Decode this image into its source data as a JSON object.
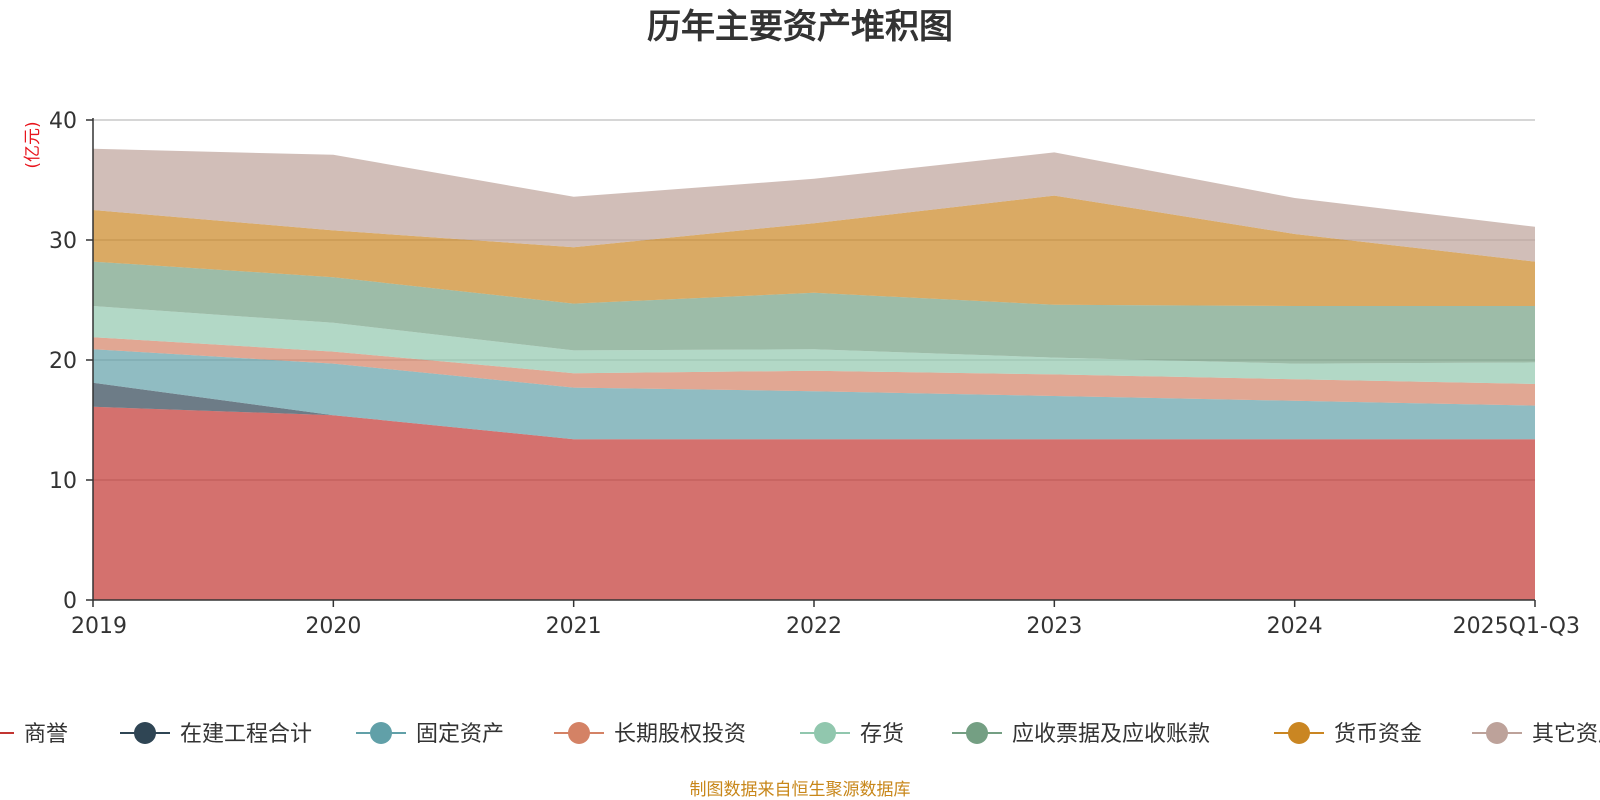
{
  "chart_data": {
    "type": "area",
    "stacked": true,
    "title": "历年主要资产堆积图",
    "ylabel": "(亿元)",
    "xlabel": "",
    "ylim": [
      0,
      40
    ],
    "yticks": [
      0,
      10,
      20,
      30,
      40
    ],
    "grid": true,
    "legend_position": "bottom",
    "categories": [
      "2019",
      "2020",
      "2021",
      "2022",
      "2023",
      "2024",
      "2025Q1-Q3"
    ],
    "series": [
      {
        "name": "商誉",
        "color": "#c23531",
        "values": [
          16.1,
          15.4,
          13.4,
          13.4,
          13.4,
          13.4,
          13.4
        ]
      },
      {
        "name": "在建工程合计",
        "color": "#2f4554",
        "values": [
          2.0,
          0.0,
          0.0,
          0.0,
          0.0,
          0.0,
          0.0
        ]
      },
      {
        "name": "固定资产",
        "color": "#61a0a8",
        "values": [
          2.8,
          4.3,
          4.3,
          4.0,
          3.6,
          3.2,
          2.8
        ]
      },
      {
        "name": "长期股权投资",
        "color": "#d48265",
        "values": [
          1.0,
          1.0,
          1.2,
          1.7,
          1.8,
          1.8,
          1.8
        ]
      },
      {
        "name": "存货",
        "color": "#91c7ae",
        "values": [
          2.6,
          2.4,
          1.9,
          1.8,
          1.4,
          1.3,
          1.8
        ]
      },
      {
        "name": "应收票据及应收账款",
        "color": "#749f83",
        "values": [
          3.7,
          3.8,
          3.9,
          4.7,
          4.4,
          4.8,
          4.7
        ]
      },
      {
        "name": "货币资金",
        "color": "#ca8622",
        "values": [
          4.3,
          3.9,
          4.7,
          5.8,
          9.1,
          6.0,
          3.7
        ]
      },
      {
        "name": "其它资产",
        "color": "#bda29a",
        "values": [
          5.1,
          6.3,
          4.2,
          3.7,
          3.6,
          3.0,
          2.9
        ]
      }
    ]
  },
  "source_note": "制图数据来自恒生聚源数据库",
  "colors": {
    "ylabel": "#e8141c",
    "source": "#c8871a",
    "grid": "#c8c8c8",
    "axis": "#333333"
  }
}
